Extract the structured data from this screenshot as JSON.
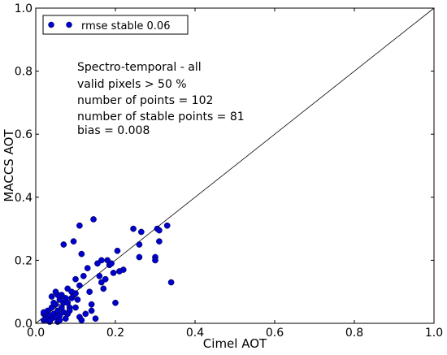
{
  "chart_data": {
    "type": "scatter",
    "xlabel": "Cimel AOT",
    "ylabel": "MACCS AOT",
    "xlim": [
      0.0,
      1.0
    ],
    "ylim": [
      0.0,
      1.0
    ],
    "x_ticks": [
      "0.0",
      "0.2",
      "0.4",
      "0.6",
      "0.8",
      "1.0"
    ],
    "y_ticks": [
      "0.0",
      "0.2",
      "0.4",
      "0.6",
      "0.8",
      "1.0"
    ],
    "grid": false,
    "legend_position": "top-left",
    "reference_line": "y = x",
    "legend": [
      {
        "label": "rmse stable 0.06",
        "marker": "circle",
        "color": "#0000cc"
      }
    ],
    "annotation_lines": [
      "Spectro-temporal - all",
      "valid pixels > 50 %",
      "number of points = 102",
      "number of stable points = 81",
      "bias = 0.008"
    ],
    "series": [
      {
        "name": "rmse stable 0.06",
        "color": "#0000cc",
        "points": [
          [
            0.02,
            0.01
          ],
          [
            0.02,
            0.03
          ],
          [
            0.025,
            0.015
          ],
          [
            0.03,
            0.02
          ],
          [
            0.03,
            0.04
          ],
          [
            0.035,
            0.025
          ],
          [
            0.04,
            0.015
          ],
          [
            0.04,
            0.05
          ],
          [
            0.04,
            0.085
          ],
          [
            0.045,
            0.03
          ],
          [
            0.05,
            0.02
          ],
          [
            0.05,
            0.06
          ],
          [
            0.055,
            0.04
          ],
          [
            0.055,
            0.09
          ],
          [
            0.06,
            0.025
          ],
          [
            0.06,
            0.075
          ],
          [
            0.065,
            0.05
          ],
          [
            0.065,
            0.09
          ],
          [
            0.07,
            0.035
          ],
          [
            0.07,
            0.065
          ],
          [
            0.075,
            0.08
          ],
          [
            0.08,
            0.03
          ],
          [
            0.08,
            0.11
          ],
          [
            0.085,
            0.05
          ],
          [
            0.09,
            0.08
          ],
          [
            0.095,
            0.09
          ],
          [
            0.1,
            0.05
          ],
          [
            0.1,
            0.095
          ],
          [
            0.105,
            0.075
          ],
          [
            0.11,
            0.02
          ],
          [
            0.11,
            0.12
          ],
          [
            0.115,
            0.01
          ],
          [
            0.02,
            0.035
          ],
          [
            0.03,
            0.01
          ],
          [
            0.045,
            0.065
          ],
          [
            0.07,
            0.25
          ],
          [
            0.095,
            0.26
          ],
          [
            0.1,
            0.14
          ],
          [
            0.11,
            0.31
          ],
          [
            0.115,
            0.22
          ],
          [
            0.12,
            0.15
          ],
          [
            0.135,
            0.1
          ],
          [
            0.14,
            0.04
          ],
          [
            0.14,
            0.06
          ],
          [
            0.145,
            0.33
          ],
          [
            0.15,
            0.015
          ],
          [
            0.155,
            0.19
          ],
          [
            0.16,
            0.15
          ],
          [
            0.165,
            0.13
          ],
          [
            0.17,
            0.11
          ],
          [
            0.175,
            0.14
          ],
          [
            0.18,
            0.2
          ],
          [
            0.185,
            0.185
          ],
          [
            0.19,
            0.19
          ],
          [
            0.195,
            0.16
          ],
          [
            0.2,
            0.065
          ],
          [
            0.205,
            0.23
          ],
          [
            0.21,
            0.165
          ],
          [
            0.22,
            0.17
          ],
          [
            0.245,
            0.3
          ],
          [
            0.26,
            0.25
          ],
          [
            0.26,
            0.21
          ],
          [
            0.265,
            0.29
          ],
          [
            0.3,
            0.21
          ],
          [
            0.3,
            0.2
          ],
          [
            0.305,
            0.3
          ],
          [
            0.31,
            0.26
          ],
          [
            0.33,
            0.31
          ],
          [
            0.34,
            0.13
          ],
          [
            0.31,
            0.295
          ],
          [
            0.085,
            0.04
          ],
          [
            0.075,
            0.015
          ],
          [
            0.055,
            0.005
          ],
          [
            0.035,
            0.005
          ],
          [
            0.09,
            0.1
          ],
          [
            0.13,
            0.175
          ],
          [
            0.165,
            0.2
          ],
          [
            0.06,
            0.01
          ],
          [
            0.05,
            0.1
          ],
          [
            0.08,
            0.065
          ],
          [
            0.125,
            0.03
          ]
        ]
      }
    ]
  }
}
